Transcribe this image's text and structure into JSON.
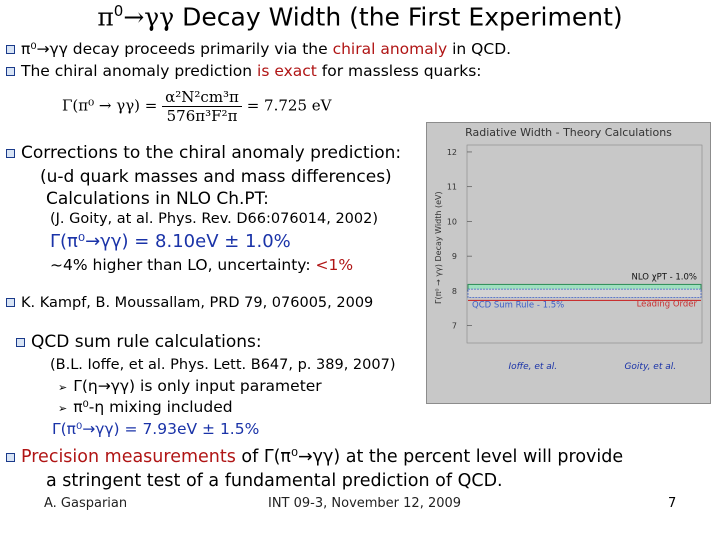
{
  "title": {
    "prefix": "π",
    "sup": "0",
    "middle": "→γγ ",
    "text": "Decay Width (the First Experiment)"
  },
  "bullets_top": [
    {
      "a": "π⁰→γγ decay proceeds primarily via the ",
      "b": "chiral anomaly",
      "c": " in  QCD."
    },
    {
      "a": "The chiral anomaly prediction ",
      "b": "is exact",
      "c": " for massless quarks:"
    }
  ],
  "formula": {
    "lhs": "Γ(π⁰ → γγ) =",
    "num": "α²N²cm³π",
    "den": "576π³F²π",
    "rhs": "= 7.725 eV"
  },
  "corrections": {
    "line1": "Corrections to the chiral anomaly prediction:",
    "line2": "(u-d quark masses and mass differences)",
    "line3": "Calculations in NLO Ch.PT:",
    "line4": "(J. Goity, at al. Phys. Rev. D66:076014, 2002)",
    "line5": "Γ(π⁰→γγ) = 8.10eV ± 1.0%",
    "line6a": "~4% higher than LO, uncertainty: ",
    "line6b": "<1%"
  },
  "kampf": "K. Kampf, B. Moussallam, PRD 79, 076005, 2009",
  "qcd": {
    "line1": "QCD sum rule calculations:",
    "line2": "(B.L. Ioffe, et al. Phys. Lett. B647, p. 389, 2007)",
    "line3": "Γ(η→γγ) is only input parameter",
    "line4": "π⁰-η mixing included",
    "line5": "Γ(π⁰→γγ) = 7.93eV ± 1.5%"
  },
  "precision": {
    "line1a": "Precision measurements",
    "line1b": " of Γ(π⁰→γγ) at the percent level will provide",
    "line2": "a stringent test of a fundamental prediction of QCD."
  },
  "footer": {
    "author": "A. Gasparian",
    "event": "INT 09-3, November 12, 2009",
    "page": "7"
  },
  "chart_data": {
    "type": "band",
    "title": "Radiative Width - Theory Calculations",
    "ylabel": "Γ(π⁰ → γγ) Decay Width (eV)",
    "ylim": [
      6.5,
      12.2
    ],
    "yticks": [
      7,
      8,
      9,
      10,
      11,
      12
    ],
    "bands": [
      {
        "label": "NLO χPT - 1.0%",
        "value": 8.1,
        "unc": 0.08,
        "color": "#2e8b57"
      },
      {
        "label": "QCD Sum Rule - 1.5%",
        "value": 7.93,
        "unc": 0.12,
        "color": "#3d5fc8"
      },
      {
        "label": "Leading Order",
        "value": 7.725,
        "unc": 0,
        "color": "#c83030"
      }
    ],
    "xlabels": [
      "Ioffe, et al.",
      "Goity, et al."
    ],
    "colors": {
      "band_fill": "#9fe0c0",
      "grid_bg": "#c8c8c8"
    }
  }
}
